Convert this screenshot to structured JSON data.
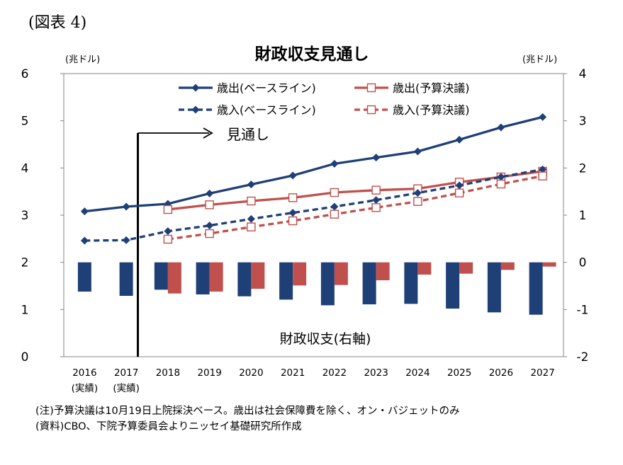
{
  "figure_label": "(図表 4)",
  "notes": [
    "(注)予算決議は10月19日上院採決ベース。歳出は社会保障費を除く、オン・バジェットのみ",
    "(資料)CBO、下院予算委員会よりニッセイ基礎研究所作成"
  ],
  "chart_data": {
    "type": "line",
    "title": "財政収支見通し",
    "left_unit": "(兆ドル)",
    "right_unit": "(兆ドル)",
    "x_labels": [
      "2016",
      "2017",
      "2018",
      "2019",
      "2020",
      "2021",
      "2022",
      "2023",
      "2024",
      "2025",
      "2026",
      "2027"
    ],
    "x_sublabels": [
      "(実績)",
      "(実績)",
      "",
      "",
      "",
      "",
      "",
      "",
      "",
      "",
      "",
      ""
    ],
    "ylim_left": [
      0,
      6
    ],
    "ylim_right": [
      -2,
      4
    ],
    "yticks_left": [
      0,
      1,
      2,
      3,
      4,
      5,
      6
    ],
    "yticks_right": [
      -2,
      -1,
      0,
      1,
      2,
      3,
      4
    ],
    "grid": false,
    "legend_position": "top-center",
    "colors": {
      "blue": "#1f3f77",
      "red": "#c0504d"
    },
    "forecast_annotation": {
      "label": "見通し",
      "start_between": [
        "2017",
        "2018"
      ]
    },
    "bar_annotation": "財政収支(右軸)",
    "series": [
      {
        "name": "歳出(ベースライン)",
        "axis": "left",
        "style": "solid",
        "marker": "diamond",
        "color": "#1f3f77",
        "values": [
          3.08,
          3.18,
          3.24,
          3.46,
          3.65,
          3.84,
          4.09,
          4.22,
          4.35,
          4.6,
          4.86,
          5.08
        ]
      },
      {
        "name": "歳出(予算決議)",
        "axis": "left",
        "style": "solid",
        "marker": "open-square",
        "color": "#c0504d",
        "values": [
          null,
          null,
          3.12,
          3.22,
          3.3,
          3.37,
          3.48,
          3.53,
          3.56,
          3.7,
          3.81,
          3.93
        ]
      },
      {
        "name": "歳入(ベースライン)",
        "axis": "left",
        "style": "dashed",
        "marker": "diamond",
        "color": "#1f3f77",
        "values": [
          2.46,
          2.47,
          2.66,
          2.78,
          2.92,
          3.05,
          3.18,
          3.32,
          3.47,
          3.63,
          3.81,
          3.97
        ]
      },
      {
        "name": "歳入(予算決議)",
        "axis": "left",
        "style": "dashed",
        "marker": "open-square",
        "color": "#c0504d",
        "values": [
          null,
          null,
          2.49,
          2.61,
          2.75,
          2.88,
          3.02,
          3.16,
          3.29,
          3.47,
          3.66,
          3.83
        ]
      }
    ],
    "bar_series": [
      {
        "name": "財政収支(ベースライン)",
        "axis": "right",
        "color": "#1f3f77",
        "values": [
          -0.62,
          -0.71,
          -0.58,
          -0.68,
          -0.72,
          -0.79,
          -0.91,
          -0.89,
          -0.88,
          -0.98,
          -1.06,
          -1.11
        ]
      },
      {
        "name": "財政収支(予算決議)",
        "axis": "right",
        "color": "#c0504d",
        "values": [
          null,
          null,
          -0.66,
          -0.62,
          -0.56,
          -0.49,
          -0.48,
          -0.38,
          -0.26,
          -0.24,
          -0.16,
          -0.09
        ]
      }
    ]
  }
}
